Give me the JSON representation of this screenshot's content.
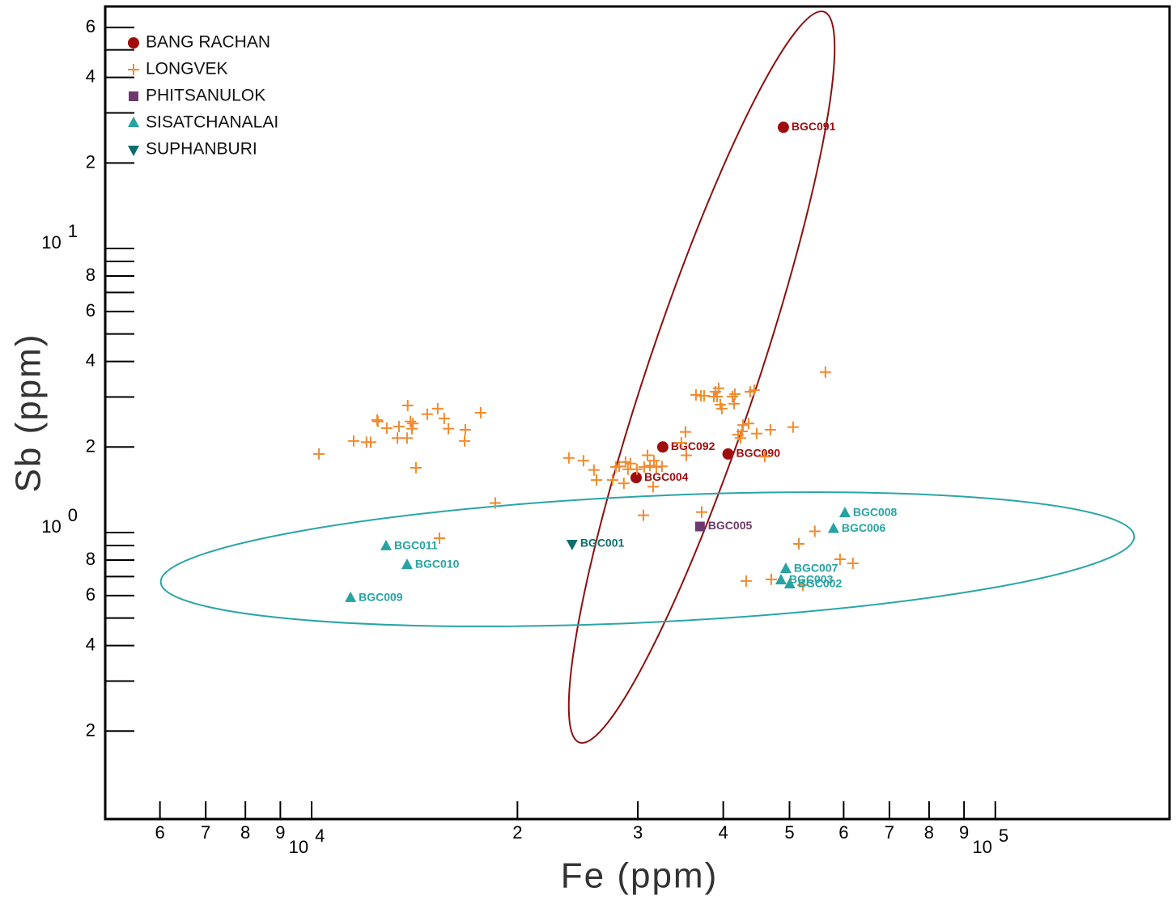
{
  "chart_data": {
    "type": "scatter",
    "xlabel": "Fe (ppm)",
    "ylabel": "Sb (ppm)",
    "xscale": "log",
    "yscale": "log",
    "xlim": [
      4990,
      179800
    ],
    "ylim": [
      0.098,
      71.1
    ],
    "xticks": [
      {
        "value": 6000,
        "label": "6"
      },
      {
        "value": 7000,
        "label": "7"
      },
      {
        "value": 8000,
        "label": "8"
      },
      {
        "value": 9000,
        "label": "9"
      },
      {
        "value": 10000,
        "label": "10",
        "exponent": "4"
      },
      {
        "value": 20000,
        "label": "2"
      },
      {
        "value": 30000,
        "label": "3"
      },
      {
        "value": 40000,
        "label": "4"
      },
      {
        "value": 50000,
        "label": "5"
      },
      {
        "value": 60000,
        "label": "6"
      },
      {
        "value": 70000,
        "label": "7"
      },
      {
        "value": 80000,
        "label": "8"
      },
      {
        "value": 90000,
        "label": "9"
      },
      {
        "value": 100000,
        "label": "10",
        "exponent": "5"
      }
    ],
    "yticks": [
      {
        "value": 60,
        "label": "6"
      },
      {
        "value": 40,
        "label": "4"
      },
      {
        "value": 20,
        "label": "2"
      },
      {
        "value": 10,
        "label": "10",
        "exponent": "1"
      },
      8,
      6,
      4,
      2,
      {
        "value": 1,
        "label": "10",
        "exponent": "0"
      },
      {
        "value": 0.8,
        "label": "8"
      },
      {
        "value": 0.6,
        "label": "6"
      },
      {
        "value": 0.4,
        "label": "4"
      },
      {
        "value": 0.2,
        "label": "2"
      }
    ],
    "yminor_ticks": [
      50,
      30,
      9,
      7,
      5,
      3,
      0.9,
      0.7,
      0.5,
      0.3
    ],
    "legend": "upper left",
    "series": [
      {
        "name": "BANG RACHAN",
        "color": "#a00d0d",
        "marker": "circle",
        "x": [
          48980,
          32630,
          40650,
          29830
        ],
        "y": [
          26.7,
          2.0,
          1.89,
          1.56
        ],
        "labels": [
          "BGC091",
          "BGC092",
          "BGC090",
          "BGC004"
        ]
      },
      {
        "name": "LONGVEK",
        "color": "#f28a2e",
        "marker": "plus",
        "x": [
          10250,
          11520,
          12030,
          12200,
          12470,
          12500,
          12880,
          13350,
          13420,
          13790,
          13820,
          13950,
          14020,
          14060,
          14210,
          14760,
          15290,
          15630,
          15850,
          16740,
          16780,
          17670,
          15380,
          18560,
          23780,
          24980,
          25880,
          26100,
          27550,
          27860,
          28170,
          28620,
          28780,
          29020,
          29260,
          29910,
          30650,
          30990,
          31240,
          31580,
          31670,
          31930,
          32540,
          30570,
          34740,
          35220,
          35320,
          36490,
          37100,
          37500,
          37200,
          38750,
          38960,
          39170,
          39380,
          39600,
          39810,
          41250,
          41480,
          41590,
          42050,
          42390,
          42630,
          42740,
          43560,
          43800,
          44390,
          44760,
          45990,
          46880,
          50600,
          56430,
          43210,
          47010,
          52290,
          51590,
          54450,
          59270,
          61900
        ],
        "y": [
          1.89,
          2.1,
          2.08,
          2.08,
          2.49,
          2.46,
          2.33,
          2.15,
          2.36,
          2.15,
          2.8,
          2.46,
          2.32,
          2.42,
          1.69,
          2.61,
          2.73,
          2.52,
          2.32,
          2.1,
          2.3,
          2.64,
          0.955,
          1.27,
          1.83,
          1.79,
          1.66,
          1.53,
          1.53,
          1.7,
          1.71,
          1.49,
          1.77,
          1.67,
          1.75,
          1.67,
          1.7,
          1.87,
          1.72,
          1.45,
          1.79,
          1.7,
          1.71,
          1.15,
          2.07,
          2.26,
          1.87,
          3.05,
          3.03,
          3.03,
          1.18,
          3.01,
          3.13,
          3.01,
          3.22,
          2.82,
          2.73,
          3.01,
          2.84,
          3.07,
          2.21,
          2.15,
          2.27,
          2.39,
          2.42,
          3.13,
          3.17,
          2.23,
          1.85,
          2.3,
          2.35,
          3.67,
          0.675,
          0.684,
          0.653,
          0.912,
          1.01,
          0.805,
          0.779
        ]
      },
      {
        "name": "PHITSANULOK",
        "color": "#6e3a6e",
        "marker": "square",
        "x": [
          36980
        ],
        "y": [
          1.05
        ],
        "labels": [
          "BGC005"
        ]
      },
      {
        "name": "SISATCHANALAI",
        "color": "#27a3a3",
        "marker": "triangle",
        "x": [
          60250,
          57990,
          49380,
          48580,
          50040,
          12850,
          13790,
          11400
        ],
        "y": [
          1.17,
          1.03,
          0.744,
          0.679,
          0.657,
          0.895,
          0.769,
          0.588
        ],
        "labels": [
          "BGC008",
          "BGC006",
          "BGC007",
          "BGC003",
          "BGC002",
          "BGC011",
          "BGC010",
          "BGC009"
        ]
      },
      {
        "name": "SUPHANBURI",
        "color": "#0c6e6e",
        "marker": "triangle-down",
        "x": [
          24040
        ],
        "y": [
          0.912
        ],
        "labels": [
          "BGC001"
        ]
      }
    ]
  }
}
